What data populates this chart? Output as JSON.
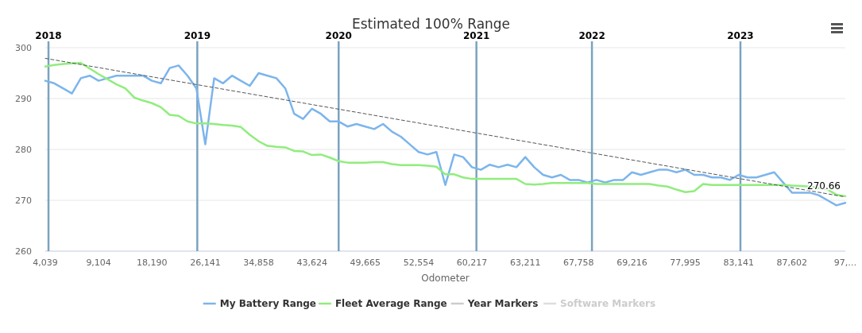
{
  "chart_data": {
    "type": "line",
    "title": "Estimated 100% Range",
    "xlabel": "Odometer",
    "categories": [
      "4,039",
      null,
      null,
      null,
      null,
      null,
      "9,104",
      null,
      null,
      null,
      null,
      null,
      "18,190",
      null,
      null,
      null,
      null,
      null,
      "26,141",
      null,
      null,
      null,
      null,
      null,
      "34,858",
      null,
      null,
      null,
      null,
      null,
      "43,624",
      null,
      null,
      null,
      null,
      null,
      "49,665",
      null,
      null,
      null,
      null,
      null,
      "52,554",
      null,
      null,
      null,
      null,
      null,
      "60,217",
      null,
      null,
      null,
      null,
      null,
      "63,211",
      null,
      null,
      null,
      null,
      null,
      "67,758",
      null,
      null,
      null,
      null,
      null,
      "69,216",
      null,
      null,
      null,
      null,
      null,
      "77,995",
      null,
      null,
      null,
      null,
      null,
      "83,141",
      null,
      null,
      null,
      null,
      null,
      "87,602",
      null,
      null,
      null,
      null,
      null,
      "97,…"
    ],
    "series": [
      {
        "name": "My Battery Range",
        "color": "#7cb5ec",
        "values": [
          293.5,
          293,
          292,
          291,
          294,
          294.5,
          293.5,
          294,
          294.5,
          294.5,
          294.5,
          294.5,
          293.5,
          293,
          296,
          296.5,
          294.5,
          292,
          281,
          294,
          293,
          294.5,
          293.5,
          292.5,
          295,
          294.5,
          294,
          292,
          287,
          286,
          288,
          287,
          285.5,
          285.5,
          284.5,
          285,
          284.5,
          284,
          285,
          283.5,
          282.5,
          281,
          279.5,
          279,
          279.5,
          273,
          279,
          278.5,
          276.5,
          276,
          277,
          276.5,
          277,
          276.5,
          278.5,
          276.5,
          275,
          274.5,
          275,
          274,
          274,
          273.5,
          274,
          273.5,
          274,
          274,
          275.5,
          275,
          275.5,
          276,
          276,
          275.5,
          276,
          275,
          275,
          274.5,
          274.5,
          274,
          275,
          274.5,
          274.5,
          275,
          275.5,
          273.5,
          271.5,
          271.5,
          271.5,
          271,
          270,
          269,
          269.5
        ]
      },
      {
        "name": "Fleet Average Range",
        "color": "#90ed7d",
        "values": [
          296.3,
          296.6,
          296.8,
          296.9,
          297,
          295.9,
          294.8,
          293.8,
          292.8,
          292,
          290.2,
          289.6,
          289.1,
          288.3,
          286.8,
          286.6,
          285.5,
          285.1,
          285.1,
          285,
          284.8,
          284.7,
          284.4,
          282.9,
          281.6,
          280.7,
          280.5,
          280.4,
          279.7,
          279.6,
          278.9,
          279,
          278.4,
          277.7,
          277.4,
          277.4,
          277.4,
          277.5,
          277.5,
          277.1,
          276.9,
          276.9,
          276.9,
          276.8,
          276.6,
          275.1,
          275.1,
          274.5,
          274.2,
          274.2,
          274.2,
          274.2,
          274.2,
          274.2,
          273.2,
          273.1,
          273.2,
          273.4,
          273.4,
          273.4,
          273.4,
          273.4,
          273.2,
          273.2,
          273.2,
          273.2,
          273.2,
          273.2,
          273.2,
          272.9,
          272.7,
          272.1,
          271.6,
          271.8,
          273.2,
          273,
          273,
          273,
          273,
          273,
          273,
          273,
          273,
          273,
          272.9,
          272.8,
          272.7,
          272.4,
          272.1,
          271.1,
          270.8
        ]
      },
      {
        "name": "Year Markers",
        "type": "other",
        "color": "#cccccc",
        "values": [
          null,
          null,
          null,
          null,
          null,
          null,
          null,
          null,
          null,
          null,
          null,
          null,
          null,
          null,
          null,
          null,
          null,
          null,
          null,
          null,
          null,
          null,
          null,
          null,
          null,
          null,
          null,
          null,
          null,
          null,
          null,
          null,
          null,
          null,
          null,
          null,
          null,
          null,
          null,
          null,
          null,
          null,
          null,
          null,
          null,
          null,
          null,
          null,
          null,
          null,
          null,
          null,
          null,
          null,
          null,
          null,
          null,
          null,
          null,
          null,
          null,
          null,
          null,
          null,
          null,
          null,
          null,
          null,
          null,
          null,
          null,
          null,
          null,
          null,
          null,
          null,
          null,
          null,
          null,
          null,
          null,
          null,
          null,
          null,
          null,
          null,
          null,
          null,
          null,
          null,
          null
        ]
      },
      {
        "name": "Software Markers",
        "color": "#dddddd",
        "values": [
          null,
          null,
          null,
          null,
          null,
          null,
          null,
          null,
          null,
          null,
          null,
          null,
          null,
          null,
          null,
          null,
          null,
          null,
          null,
          null,
          null,
          null,
          null,
          null,
          null,
          null,
          null,
          null,
          null,
          null,
          null,
          null,
          null,
          null,
          null,
          null,
          null,
          null,
          null,
          null,
          null,
          null,
          null,
          null,
          null,
          null,
          null,
          null,
          null,
          null,
          null,
          null,
          null,
          null,
          null,
          null,
          null,
          null,
          null,
          null,
          null,
          null,
          null,
          null,
          null,
          null,
          null,
          null,
          null,
          null,
          null,
          null,
          null,
          null,
          null,
          null,
          null,
          null,
          null,
          null,
          null,
          null,
          null,
          null,
          null,
          null,
          null,
          null,
          null,
          null,
          null
        ]
      },
      {
        "color": "#555555",
        "line_style": "dashed",
        "x": [
          "4,039",
          "97,…"
        ],
        "values": [
          297.9,
          270.66
        ],
        "value_labels": [
          null,
          "270.66"
        ]
      }
    ],
    "annotations": [
      "2018",
      "2019",
      "2020",
      "2021",
      "2022",
      "2023"
    ],
    "ylim": [
      260,
      300
    ],
    "yticks": [
      260,
      270,
      280,
      290,
      300
    ],
    "grid": "y",
    "legend": "bottom",
    "marker": "none",
    "line_style": "solid"
  }
}
